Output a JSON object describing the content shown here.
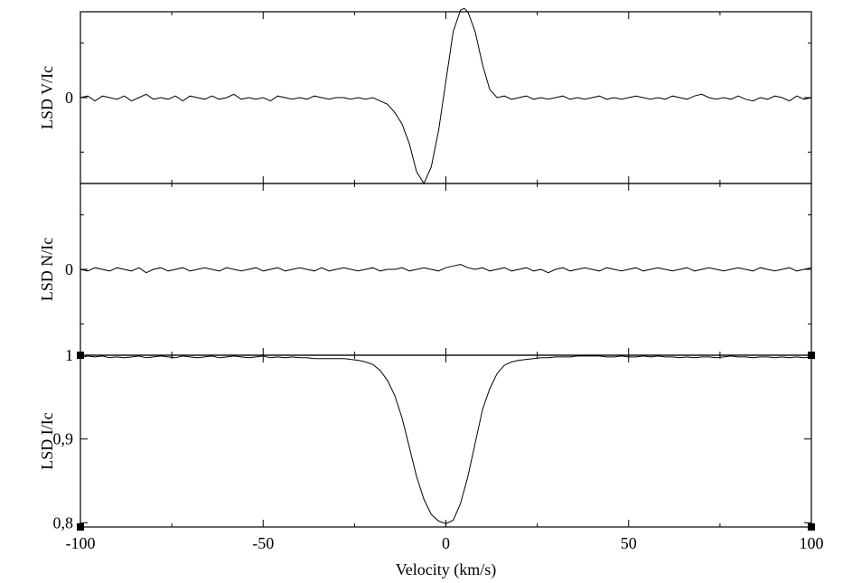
{
  "chart_data": [
    {
      "type": "line",
      "panel": "top",
      "ylabel": "LSD V/Ic",
      "xlim": [
        -100,
        100
      ],
      "ylim": [
        -0.00052,
        0.00052
      ],
      "yticks": [
        {
          "value": 0,
          "label": "0"
        }
      ],
      "y_minor_ticks": [
        -0.00033,
        0.00033
      ],
      "series": [
        {
          "x": [
            -100,
            -98,
            -96,
            -94,
            -92,
            -90,
            -88,
            -86,
            -84,
            -82,
            -80,
            -78,
            -76,
            -74,
            -72,
            -70,
            -68,
            -66,
            -64,
            -62,
            -60,
            -58,
            -56,
            -54,
            -52,
            -50,
            -48,
            -46,
            -44,
            -42,
            -40,
            -38,
            -36,
            -34,
            -32,
            -30,
            -28,
            -26,
            -24,
            -22,
            -20,
            -18,
            -16,
            -14,
            -12,
            -10,
            -8,
            -6,
            -4,
            -2,
            0,
            2,
            4,
            5,
            6,
            8,
            10,
            12,
            14,
            16,
            18,
            20,
            22,
            24,
            26,
            28,
            30,
            32,
            34,
            36,
            38,
            40,
            42,
            44,
            46,
            48,
            50,
            52,
            54,
            56,
            58,
            60,
            62,
            64,
            66,
            68,
            70,
            72,
            74,
            76,
            78,
            80,
            82,
            84,
            86,
            88,
            90,
            92,
            94,
            96,
            98,
            100
          ],
          "y": [
            0.0,
            1e-05,
            -2e-05,
            1e-05,
            0.0,
            -1e-05,
            1e-05,
            -2e-05,
            0.0,
            2e-05,
            -1e-05,
            0.0,
            -1e-05,
            1e-05,
            -2e-05,
            1e-05,
            0.0,
            -1e-05,
            1e-05,
            -1e-05,
            0.0,
            2e-05,
            -1e-05,
            0.0,
            -1e-05,
            0.0,
            -2e-05,
            1e-05,
            0.0,
            -1e-05,
            0.0,
            -1e-05,
            1e-05,
            0.0,
            -1e-05,
            0.0,
            0.0,
            -1e-05,
            0.0,
            -1e-05,
            0.0,
            -2e-05,
            -4e-05,
            -9e-05,
            -0.00016,
            -0.00028,
            -0.00045,
            -0.00052,
            -0.00042,
            -0.0002,
            0.0001,
            0.0004,
            0.00053,
            0.00054,
            0.00052,
            0.0004,
            0.0002,
            5e-05,
            0.0,
            1e-05,
            -1e-05,
            0.0,
            1e-05,
            -1e-05,
            0.0,
            -1e-05,
            0.0,
            1e-05,
            -1e-05,
            0.0,
            -1e-05,
            0.0,
            1e-05,
            -1e-05,
            0.0,
            -1e-05,
            0.0,
            1e-05,
            0.0,
            -1e-05,
            0.0,
            -1e-05,
            1e-05,
            0.0,
            -1e-05,
            1e-05,
            2e-05,
            0.0,
            -1e-05,
            0.0,
            -1e-05,
            1e-05,
            -1e-05,
            -2e-05,
            0.0,
            -1e-05,
            1e-05,
            0.0,
            -2e-05,
            1e-05,
            -1e-05,
            0.0
          ]
        }
      ]
    },
    {
      "type": "line",
      "panel": "middle",
      "ylabel": "LSD N/Ic",
      "xlim": [
        -100,
        100
      ],
      "ylim": [
        -0.00052,
        0.00052
      ],
      "yticks": [
        {
          "value": 0,
          "label": "0"
        }
      ],
      "y_minor_ticks": [
        -0.00033,
        0.00033
      ],
      "series": [
        {
          "x": [
            -100,
            -98,
            -96,
            -94,
            -92,
            -90,
            -88,
            -86,
            -84,
            -82,
            -80,
            -78,
            -76,
            -74,
            -72,
            -70,
            -68,
            -66,
            -64,
            -62,
            -60,
            -58,
            -56,
            -54,
            -52,
            -50,
            -48,
            -46,
            -44,
            -42,
            -40,
            -38,
            -36,
            -34,
            -32,
            -30,
            -28,
            -26,
            -24,
            -22,
            -20,
            -18,
            -16,
            -14,
            -12,
            -10,
            -8,
            -6,
            -4,
            -2,
            0,
            2,
            4,
            5,
            6,
            8,
            10,
            12,
            14,
            16,
            18,
            20,
            22,
            24,
            26,
            28,
            30,
            32,
            34,
            36,
            38,
            40,
            42,
            44,
            46,
            48,
            50,
            52,
            54,
            56,
            58,
            60,
            62,
            64,
            66,
            68,
            70,
            72,
            74,
            76,
            78,
            80,
            82,
            84,
            86,
            88,
            90,
            92,
            94,
            96,
            98,
            100
          ],
          "y": [
            0.0,
            -1e-05,
            1e-05,
            0.0,
            -1e-05,
            1e-05,
            0.0,
            -1e-05,
            1e-05,
            -2e-05,
            0.0,
            1e-05,
            -1e-05,
            0.0,
            1e-05,
            -1e-05,
            0.0,
            1e-05,
            0.0,
            -1e-05,
            1e-05,
            0.0,
            -1e-05,
            0.0,
            1e-05,
            -1e-05,
            0.0,
            1e-05,
            -1e-05,
            0.0,
            1e-05,
            0.0,
            -1e-05,
            1e-05,
            -1e-05,
            0.0,
            1e-05,
            0.0,
            -1e-05,
            0.0,
            1e-05,
            -1e-05,
            0.0,
            0.0,
            1e-05,
            -1e-05,
            0.0,
            1e-05,
            0.0,
            -1e-05,
            1e-05,
            2e-05,
            3e-05,
            2e-05,
            1e-05,
            0.0,
            1e-05,
            -1e-05,
            0.0,
            1e-05,
            -1e-05,
            0.0,
            1e-05,
            -1e-05,
            0.0,
            -2e-05,
            0.0,
            1e-05,
            -1e-05,
            0.0,
            1e-05,
            0.0,
            -1e-05,
            1e-05,
            0.0,
            -1e-05,
            0.0,
            1e-05,
            -1e-05,
            0.0,
            1e-05,
            0.0,
            -1e-05,
            0.0,
            1e-05,
            -1e-05,
            0.0,
            1e-05,
            0.0,
            -1e-05,
            0.0,
            1e-05,
            0.0,
            -1e-05,
            1e-05,
            0.0,
            -1e-05,
            0.0,
            1e-05,
            -1e-05,
            0.0,
            1e-05
          ]
        }
      ]
    },
    {
      "type": "line",
      "panel": "bottom",
      "ylabel": "LSD I/Ic",
      "xlabel": "Velocity (km/s)",
      "xlim": [
        -100,
        100
      ],
      "ylim": [
        0.795,
        1.0
      ],
      "yticks": [
        {
          "value": 1.0,
          "label": "1"
        },
        {
          "value": 0.9,
          "label": "0,9"
        },
        {
          "value": 0.8,
          "label": "0,8"
        }
      ],
      "xticks": [
        {
          "value": -100,
          "label": "-100"
        },
        {
          "value": -50,
          "label": "-50"
        },
        {
          "value": 0,
          "label": "0"
        },
        {
          "value": 50,
          "label": "50"
        },
        {
          "value": 100,
          "label": "100"
        }
      ],
      "x_minor_ticks": [
        -75,
        -25,
        25,
        75
      ],
      "series": [
        {
          "x": [
            -100,
            -98,
            -96,
            -94,
            -92,
            -90,
            -88,
            -86,
            -84,
            -82,
            -80,
            -78,
            -76,
            -74,
            -72,
            -70,
            -68,
            -66,
            -64,
            -62,
            -60,
            -58,
            -56,
            -54,
            -52,
            -50,
            -48,
            -46,
            -44,
            -42,
            -40,
            -38,
            -36,
            -34,
            -32,
            -30,
            -28,
            -26,
            -24,
            -22,
            -20,
            -18,
            -16,
            -14,
            -12,
            -10,
            -8,
            -6,
            -4,
            -2,
            0,
            2,
            4,
            6,
            8,
            10,
            12,
            14,
            16,
            18,
            20,
            22,
            24,
            26,
            28,
            30,
            32,
            34,
            36,
            38,
            40,
            42,
            44,
            46,
            48,
            50,
            52,
            54,
            56,
            58,
            60,
            62,
            64,
            66,
            68,
            70,
            72,
            74,
            76,
            78,
            80,
            82,
            84,
            86,
            88,
            90,
            92,
            94,
            96,
            98,
            100
          ],
          "y": [
            0.997,
            0.999,
            0.998,
            0.999,
            0.997,
            0.998,
            0.997,
            0.998,
            0.999,
            0.997,
            0.998,
            0.999,
            0.998,
            0.997,
            0.999,
            0.998,
            0.997,
            0.998,
            0.999,
            0.997,
            0.998,
            0.999,
            0.998,
            0.997,
            0.998,
            0.999,
            0.997,
            0.998,
            0.997,
            0.998,
            0.997,
            0.997,
            0.996,
            0.996,
            0.996,
            0.996,
            0.996,
            0.995,
            0.994,
            0.992,
            0.989,
            0.982,
            0.97,
            0.952,
            0.925,
            0.89,
            0.855,
            0.828,
            0.81,
            0.802,
            0.799,
            0.803,
            0.823,
            0.855,
            0.895,
            0.935,
            0.96,
            0.978,
            0.988,
            0.992,
            0.994,
            0.995,
            0.996,
            0.997,
            0.997,
            0.998,
            0.998,
            0.998,
            0.999,
            0.999,
            0.999,
            0.999,
            0.998,
            0.998,
            0.999,
            0.998,
            0.998,
            0.999,
            0.998,
            0.999,
            0.998,
            0.998,
            0.997,
            0.998,
            0.997,
            0.998,
            0.998,
            0.997,
            0.998,
            0.999,
            0.998,
            0.998,
            0.997,
            0.998,
            0.998,
            0.997,
            0.998,
            0.997,
            0.998,
            0.997,
            0.998
          ]
        }
      ]
    }
  ]
}
